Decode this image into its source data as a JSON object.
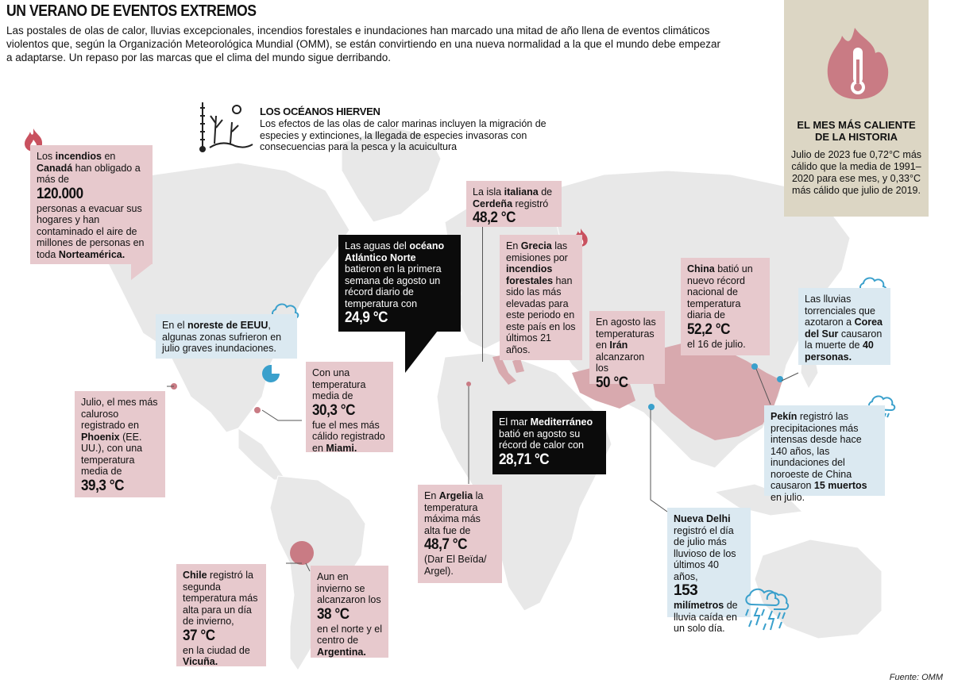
{
  "title": "UN VERANO DE EVENTOS EXTREMOS",
  "intro": "Las postales de olas de calor, lluvias excepcionales, incendios forestales e inundaciones han marcado una mitad de año llena de eventos climáticos violentos que, según la Organización Meteorológica Mundial (OMM), se están convirtiendo en una nueva normalidad a la que el mundo debe empezar a adaptarse. Un repaso por las marcas que el clima del mundo sigue derribando.",
  "oceans": {
    "title": "LOS OCÉANOS HIERVEN",
    "text": "Los efectos de las olas de calor marinas incluyen la migración de especies y extinciones, la llegada de especies invasoras con consecuencias para la pesca y la acuicultura"
  },
  "hottest_month": {
    "title_1": "EL MES MÁS CALIENTE",
    "title_2": "DE LA HISTORIA",
    "text": "Julio de 2023 fue 0,72°C más cálido que la media de 1991–2020 para ese mes, y 0,33°C más cálido que julio de 2019."
  },
  "canada": {
    "a": "Los",
    "b": "incendios",
    "c": "en",
    "d": "Canadá",
    "e": "han obligado a más de",
    "big": "120.000",
    "f": "personas a evacuar sus hogares y han contaminado el aire de millones de personas en toda",
    "g": "Norteamérica."
  },
  "sardinia": {
    "a": "La isla",
    "b": "italiana",
    "c": "de",
    "d": "Cerdeña",
    "e": "registró",
    "big": "48,2 °C"
  },
  "atlantic": {
    "a": "Las aguas del",
    "b": "océano Atlántico Norte",
    "c": "batieron en la primera semana de agosto un récord diario de temperatura con",
    "big": "24,9 °C"
  },
  "greece": {
    "a": "En",
    "b": "Grecia",
    "c": "las emisiones por",
    "d": "incendios forestales",
    "e": "han sido las más elevadas para este periodo en este país en los últimos 21 años."
  },
  "china": {
    "a": "China",
    "b": "batió un nuevo récord nacional de temperatura diaria de",
    "big": "52,2 °C",
    "c": "el 16 de julio."
  },
  "korea": {
    "a": "Las lluvias torrenciales que azotaron a",
    "b": "Corea del Sur",
    "c": "causaron la muerte de",
    "d": "40 personas."
  },
  "iran": {
    "a": "En agosto las temperaturas en",
    "b": "Irán",
    "c": "alcanzaron los",
    "big": "50 °C"
  },
  "ne_usa": {
    "a": "En el",
    "b": "noreste de EEUU",
    "c": ", algunas zonas sufrieron en julio graves inundaciones."
  },
  "miami": {
    "a": "Con una temperatura media de",
    "big": "30,3 °C",
    "b": "fue el mes más cálido registrado en",
    "c": "Miami."
  },
  "phoenix": {
    "a": "Julio, el mes más caluroso registrado en",
    "b": "Phoenix",
    "c": "(EE. UU.), con una temperatura media de",
    "big": "39,3 °C"
  },
  "mediterranean": {
    "a": "El mar",
    "b": "Mediterráneo",
    "c": "batió en agosto su récord de calor con",
    "big": "28,71 °C"
  },
  "algeria": {
    "a": "En",
    "b": "Argelia",
    "c": "la temperatura máxima más alta fue de",
    "big": "48,7 °C",
    "d": "(Dar El Beïda/ Argel)."
  },
  "beijing": {
    "a": "Pekín",
    "b": "registró las precipitaciones más intensas desde hace 140 años, las inundaciones del noroeste de China causaron",
    "c": "15 muertos",
    "d": "en julio."
  },
  "delhi": {
    "a": "Nueva Delhi",
    "b": "registró el día de julio más lluvioso de los últimos 40 años,",
    "big": "153",
    "c": "milímetros",
    "d": "de lluvia caída en un solo día."
  },
  "chile": {
    "a": "Chile",
    "b": "registró la segunda temperatura más alta para un día de invierno,",
    "big": "37 °C",
    "c": "en la ciudad de",
    "d": "Vicuña."
  },
  "argentina": {
    "a": "Aun en invierno se alcanzaron los",
    "big": "38 °C",
    "b": "en el norte y el centro de",
    "c": "Argentina."
  },
  "source": "Fuente: OMM",
  "colors": {
    "pink": "#e7c9cd",
    "map_gray": "#e8e8e8",
    "highlight": "#d8a9ae",
    "blue_icon": "#3aa0cc",
    "black": "#0b0b0b",
    "tan": "#dcd6c4"
  },
  "icons": [
    "fire-icon",
    "storm-cloud-icon",
    "thermometer-icon",
    "coral-icon"
  ]
}
